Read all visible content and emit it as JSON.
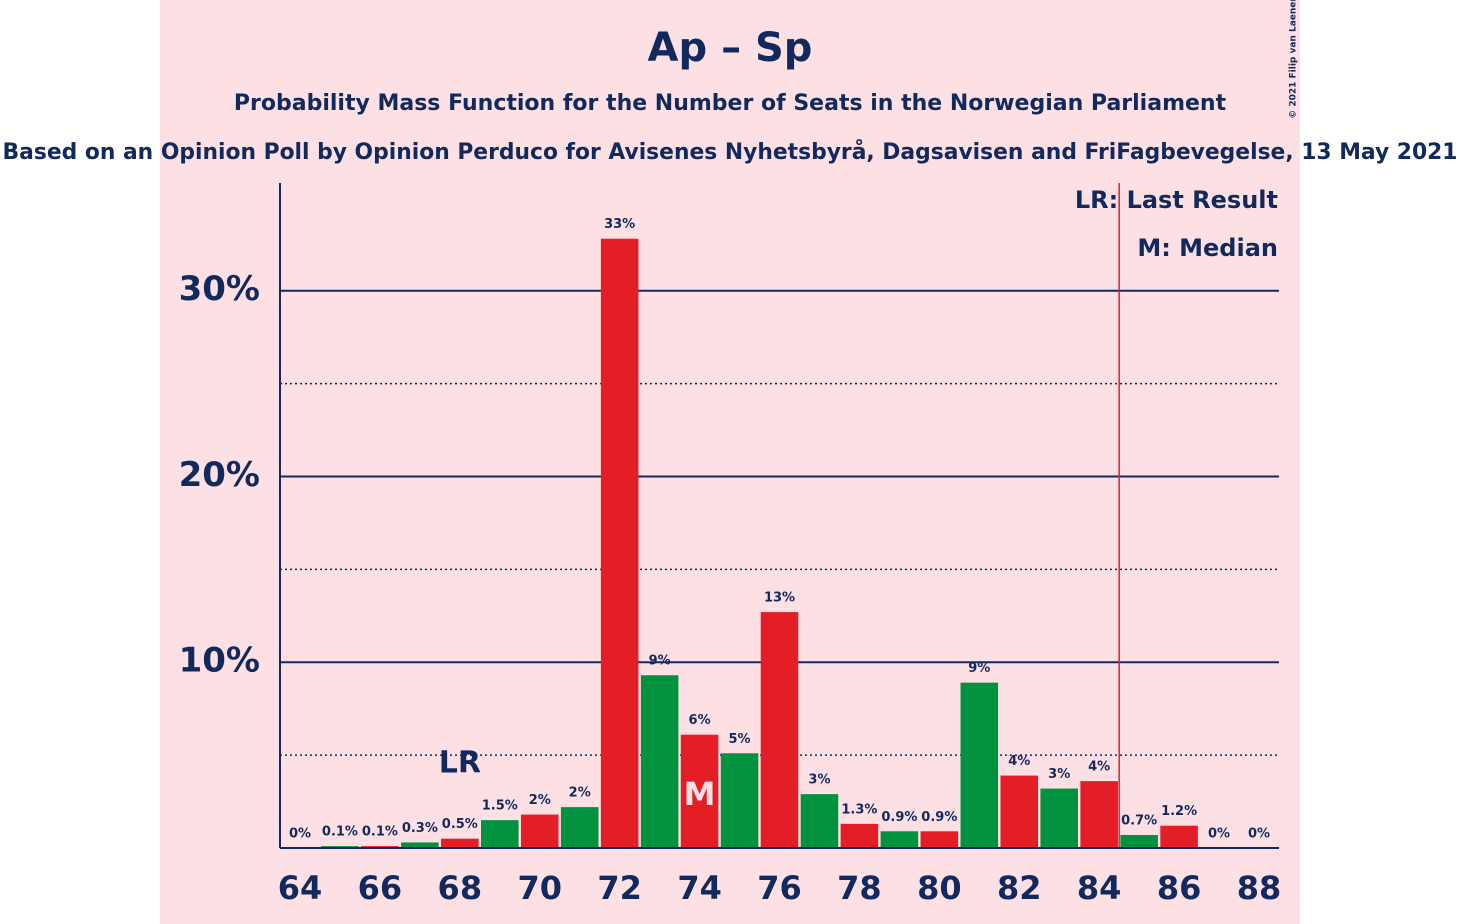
{
  "chart_data": {
    "type": "bar",
    "title": "Ap – Sp",
    "subtitle": "Probability Mass Function for the Number of Seats in the Norwegian Parliament",
    "subtitle2": "Based on an Opinion Poll by Opinion Perduco for Avisenes Nyhetsbyrå, Dagsavisen and FriFagbevegelse, 13 May 2021",
    "copyright": "© 2021 Filip van Laenen",
    "x": [
      64,
      65,
      66,
      67,
      68,
      69,
      70,
      71,
      72,
      73,
      74,
      75,
      76,
      77,
      78,
      79,
      80,
      81,
      82,
      83,
      84,
      85,
      86,
      87,
      88
    ],
    "values": [
      0,
      0.1,
      0.1,
      0.3,
      0.5,
      1.5,
      1.8,
      2.2,
      32.8,
      9.3,
      6.1,
      5.1,
      12.7,
      2.9,
      1.3,
      0.9,
      0.9,
      8.9,
      3.9,
      3.2,
      3.6,
      0.7,
      1.2,
      0,
      0
    ],
    "value_labels": [
      "0%",
      "0.1%",
      "0.1%",
      "0.3%",
      "0.5%",
      "1.5%",
      "2%",
      "2%",
      "33%",
      "9%",
      "6%",
      "5%",
      "13%",
      "3%",
      "1.3%",
      "0.9%",
      "0.9%",
      "9%",
      "4%",
      "3%",
      "4%",
      "0.7%",
      "1.2%",
      "0%",
      "0%"
    ],
    "colors": [
      "#e31e26",
      "#00923f",
      "#e31e26",
      "#00923f",
      "#e31e26",
      "#00923f",
      "#e31e26",
      "#00923f",
      "#e31e26",
      "#00923f",
      "#e31e26",
      "#00923f",
      "#e31e26",
      "#00923f",
      "#e31e26",
      "#00923f",
      "#e31e26",
      "#00923f",
      "#e31e26",
      "#00923f",
      "#e31e26",
      "#00923f",
      "#e31e26",
      "#00923f",
      "#e31e26"
    ],
    "xlim": [
      63.5,
      88.5
    ],
    "xticks": [
      64,
      66,
      68,
      70,
      72,
      74,
      76,
      78,
      80,
      82,
      84,
      86,
      88
    ],
    "ylim": [
      0,
      35.8
    ],
    "yticks": [
      {
        "value": 10,
        "label": "10%"
      },
      {
        "value": 20,
        "label": "20%"
      },
      {
        "value": 30,
        "label": "30%"
      }
    ],
    "yminor": [
      5,
      15,
      25
    ],
    "grid": true,
    "last_result": {
      "label": "LR",
      "x": 68
    },
    "median": {
      "label": "M",
      "x": 74
    },
    "legend": [
      "LR: Last Result",
      "M: Median"
    ],
    "vline": {
      "x": 84.5,
      "color": "#e31e26"
    }
  }
}
